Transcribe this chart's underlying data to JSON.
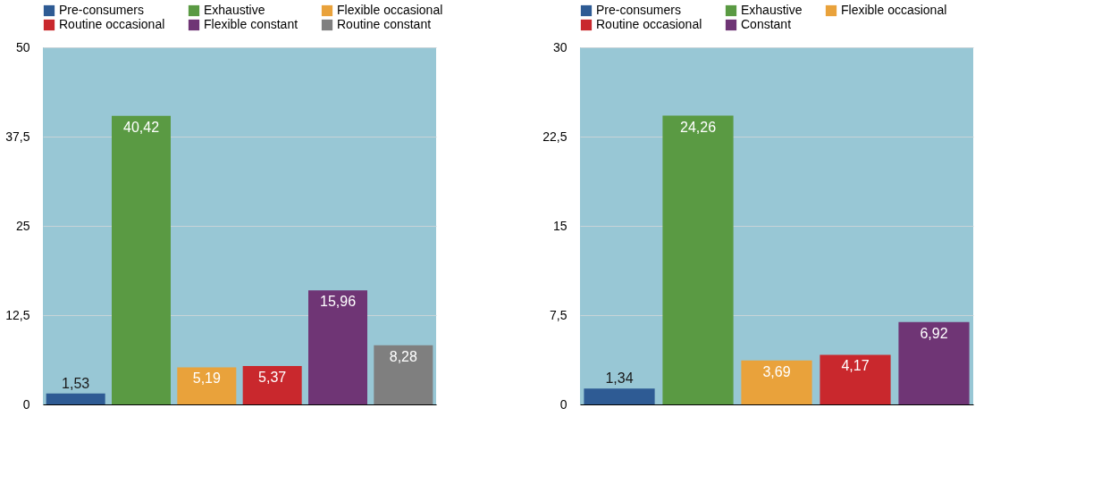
{
  "chart_data": [
    {
      "type": "bar",
      "categories": [
        null
      ],
      "legend": "top",
      "grid": "y",
      "tick_labels": "y",
      "ylim": [
        0,
        50
      ],
      "yticks": [
        0,
        {
          "value": 12.5,
          "label": "12,5"
        },
        25,
        {
          "value": 37.5,
          "label": "37,5"
        },
        50
      ],
      "series": [
        {
          "name": "Pre-consumers",
          "color": "#2e5b94",
          "values": [
            1.53
          ],
          "value_labels": [
            "1,53"
          ]
        },
        {
          "name": "Exhaustive",
          "color": "#5a9a43",
          "values": [
            40.42
          ],
          "value_labels": [
            "40,42"
          ]
        },
        {
          "name": "Flexible occasional",
          "color": "#e9a23b",
          "values": [
            5.19
          ],
          "value_labels": [
            "5,19"
          ]
        },
        {
          "name": "Routine occasional",
          "color": "#c9282d",
          "values": [
            5.37
          ],
          "value_labels": [
            "5,37"
          ]
        },
        {
          "name": "Flexible constant",
          "color": "#6f3575",
          "values": [
            15.96
          ],
          "value_labels": [
            "15,96"
          ]
        },
        {
          "name": "Routine constant",
          "color": "#7f7f7f",
          "values": [
            8.28
          ],
          "value_labels": [
            "8,28"
          ]
        }
      ]
    },
    {
      "type": "bar",
      "categories": [
        null
      ],
      "legend": "top",
      "grid": "y",
      "tick_labels": "y",
      "ylim": [
        0,
        30
      ],
      "yticks": [
        0,
        {
          "value": 7.5,
          "label": "7,5"
        },
        15,
        {
          "value": 22.5,
          "label": "22,5"
        },
        30
      ],
      "series": [
        {
          "name": "Pre-consumers",
          "color": "#2e5b94",
          "values": [
            1.34
          ],
          "value_labels": [
            "1,34"
          ]
        },
        {
          "name": "Exhaustive",
          "color": "#5a9a43",
          "values": [
            24.26
          ],
          "value_labels": [
            "24,26"
          ]
        },
        {
          "name": "Flexible occasional",
          "color": "#e9a23b",
          "values": [
            3.69
          ],
          "value_labels": [
            "3,69"
          ]
        },
        {
          "name": "Routine occasional",
          "color": "#c9282d",
          "values": [
            4.17
          ],
          "value_labels": [
            "4,17"
          ]
        },
        {
          "name": "Constant",
          "color": "#6f3575",
          "values": [
            6.92
          ],
          "value_labels": [
            "6,92"
          ]
        }
      ]
    }
  ]
}
